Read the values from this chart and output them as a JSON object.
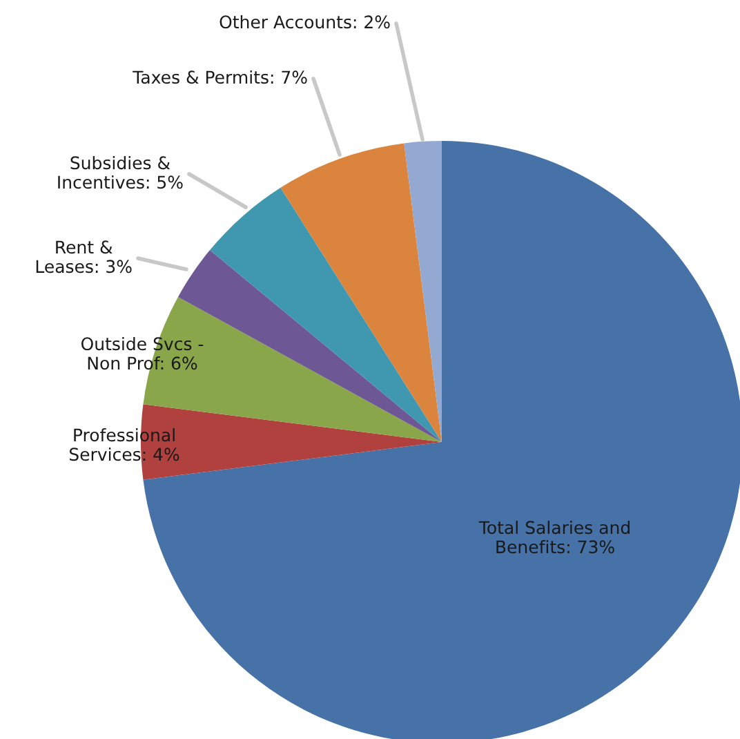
{
  "chart_data": {
    "type": "pie",
    "categories": [
      "Total Salaries and\nBenefits",
      "Professional\nServices",
      "Outside Svcs -\nNon Prof",
      "Rent &\nLeases",
      "Subsidies &\nIncentives",
      "Taxes & Permits",
      "Other Accounts"
    ],
    "values": [
      73,
      4,
      6,
      3,
      5,
      7,
      2
    ],
    "value_labels": [
      "73%",
      "4%",
      "6%",
      "3%",
      "5%",
      "7%",
      "2%"
    ],
    "colors": [
      "#4672a8",
      "#b0413e",
      "#8aa64a",
      "#6e5795",
      "#3f98b0",
      "#db843d",
      "#94a9d1"
    ],
    "legend": false
  }
}
